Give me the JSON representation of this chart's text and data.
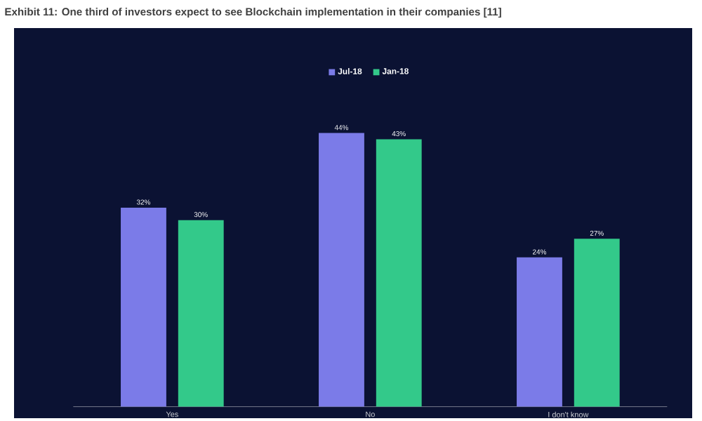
{
  "chart_data": {
    "type": "bar",
    "title": "Exhibit 11: One third of investors expect to see Blockchain implementation in their companies [11]",
    "categories": [
      "Yes",
      "No",
      "I don't know"
    ],
    "series": [
      {
        "name": "Jul-18",
        "color": "#7b7be8",
        "values": [
          32,
          44,
          24
        ],
        "value_labels": [
          "32%",
          "44%",
          "24%"
        ]
      },
      {
        "name": "Jan-18",
        "color": "#33c98a",
        "values": [
          30,
          43,
          27
        ],
        "value_labels": [
          "30%",
          "43%",
          "27%"
        ]
      }
    ],
    "legend": "top",
    "grid": false
  }
}
